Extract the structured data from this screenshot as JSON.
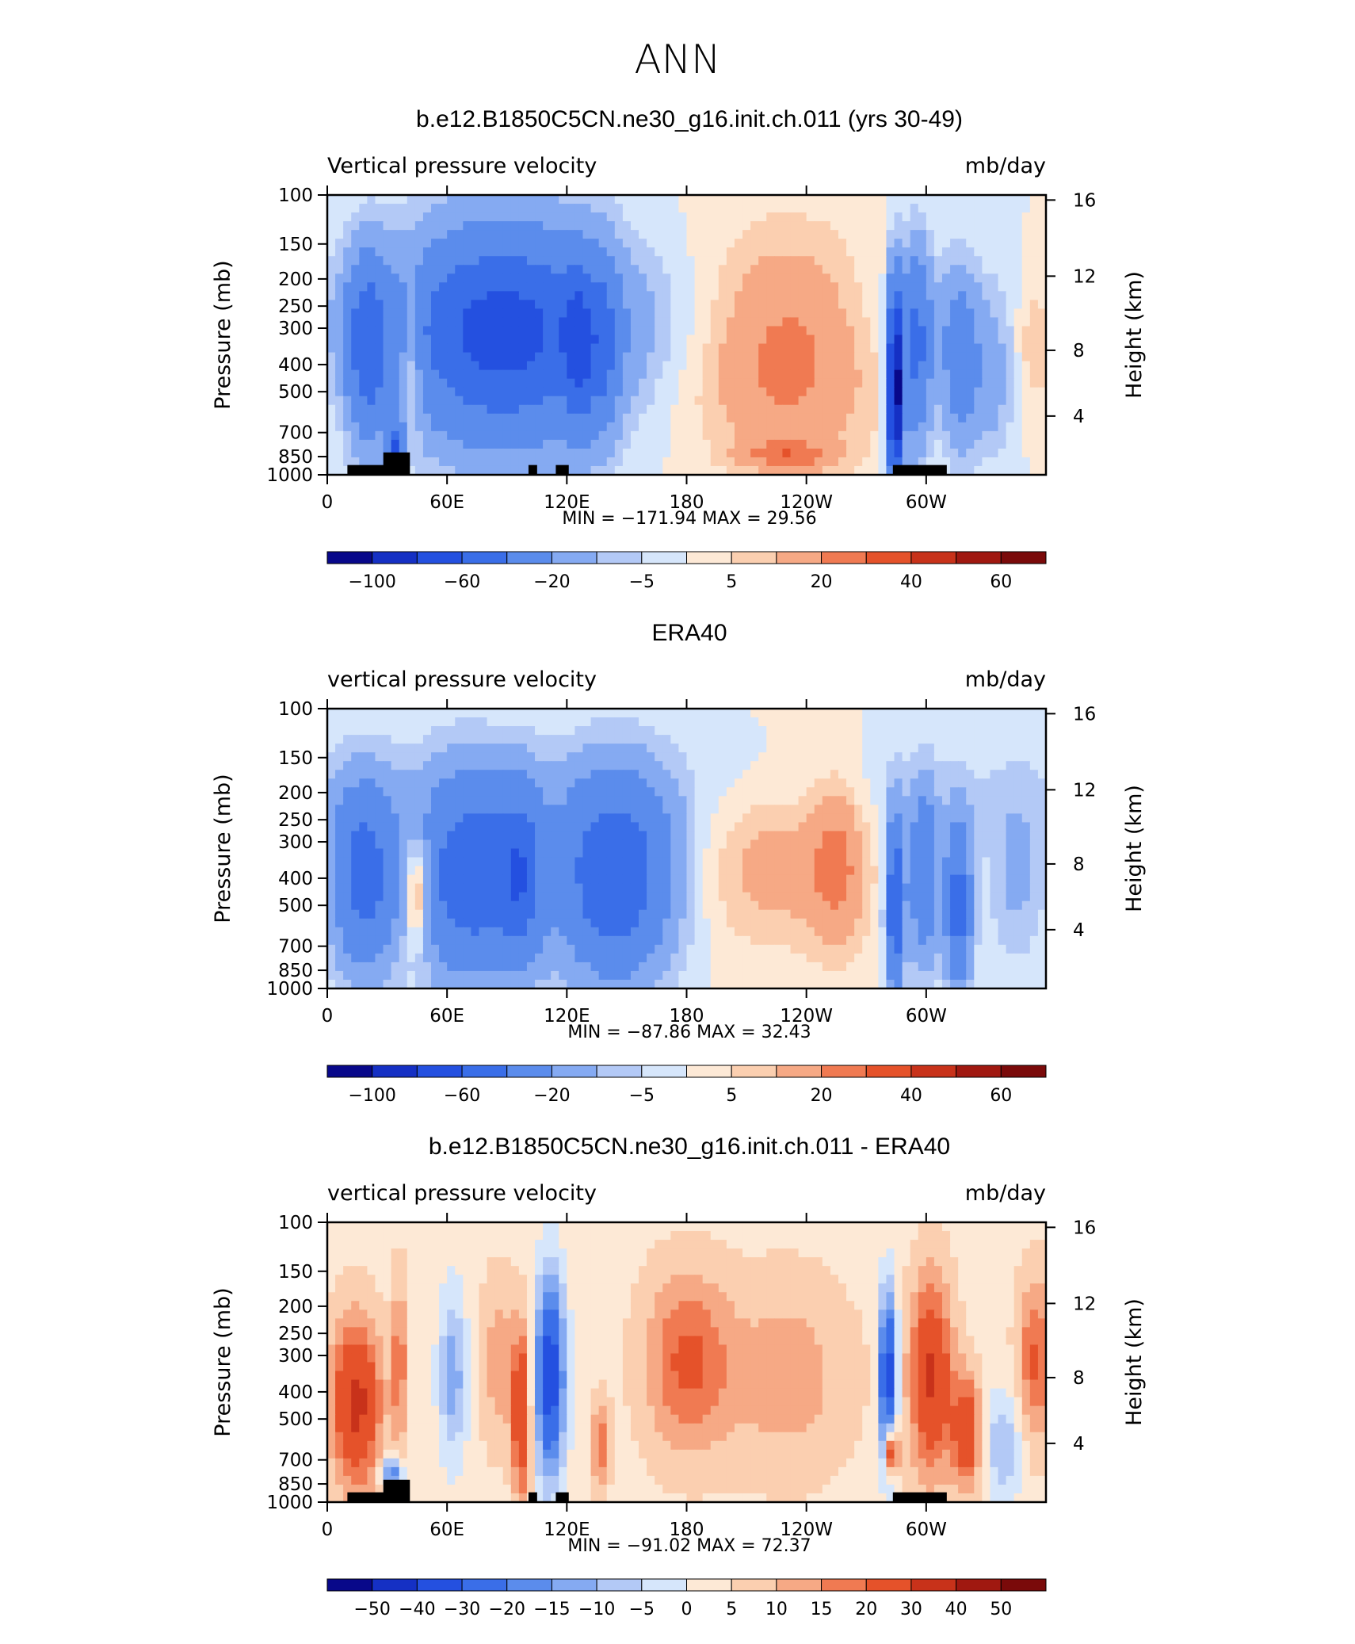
{
  "figure_title": "ANN",
  "chart_data": [
    {
      "type": "heatmap",
      "title": "b.e12.B1850C5CN.ne30_g16.init.ch.011 (yrs 30-49)",
      "left_label": "Vertical pressure velocity",
      "right_label": "mb/day",
      "ylabel": "Pressure (mb)",
      "y2label": "Height (km)",
      "x_ticks": [
        "0",
        "60E",
        "120E",
        "180",
        "120W",
        "60W"
      ],
      "y_ticks": [
        "100",
        "150",
        "200",
        "250",
        "300",
        "400",
        "500",
        "700",
        "850",
        "1000"
      ],
      "y2_ticks": [
        "16",
        "12",
        "8",
        "4"
      ],
      "min_max": "MIN = −171.94   MAX =   29.56",
      "colorbar_labels": [
        "−100",
        "−60",
        "−20",
        "−5",
        "5",
        "20",
        "40",
        "60"
      ],
      "topography": true
    },
    {
      "type": "heatmap",
      "title": "ERA40",
      "left_label": "vertical pressure velocity",
      "right_label": "mb/day",
      "ylabel": "Pressure (mb)",
      "y2label": "Height (km)",
      "x_ticks": [
        "0",
        "60E",
        "120E",
        "180",
        "120W",
        "60W"
      ],
      "y_ticks": [
        "100",
        "150",
        "200",
        "250",
        "300",
        "400",
        "500",
        "700",
        "850",
        "1000"
      ],
      "y2_ticks": [
        "16",
        "12",
        "8",
        "4"
      ],
      "min_max": "MIN = −87.86   MAX =   32.43",
      "colorbar_labels": [
        "−100",
        "−60",
        "−20",
        "−5",
        "5",
        "20",
        "40",
        "60"
      ],
      "topography": false
    },
    {
      "type": "heatmap",
      "title": "b.e12.B1850C5CN.ne30_g16.init.ch.011 - ERA40",
      "left_label": "vertical pressure velocity",
      "right_label": "mb/day",
      "ylabel": "Pressure (mb)",
      "y2label": "Height (km)",
      "x_ticks": [
        "0",
        "60E",
        "120E",
        "180",
        "120W",
        "60W"
      ],
      "y_ticks": [
        "100",
        "150",
        "200",
        "250",
        "300",
        "400",
        "500",
        "700",
        "850",
        "1000"
      ],
      "y2_ticks": [
        "16",
        "12",
        "8",
        "4"
      ],
      "min_max": "MIN = −91.02   MAX =   72.37",
      "colorbar_labels": [
        "−50",
        "−40",
        "−30",
        "−20",
        "−15",
        "−10",
        "−5",
        "0",
        "5",
        "10",
        "15",
        "20",
        "30",
        "40",
        "50"
      ],
      "topography": true
    }
  ],
  "colors": {
    "scale": [
      "#08088a",
      "#1530c4",
      "#2450e0",
      "#3a6ee8",
      "#5b8cec",
      "#85aaf2",
      "#b3c9f6",
      "#d6e6fb",
      "#fde9d6",
      "#fbcfb0",
      "#f6a985",
      "#f07a52",
      "#e5522a",
      "#c8321a",
      "#a01810",
      "#7a0a0a"
    ]
  }
}
